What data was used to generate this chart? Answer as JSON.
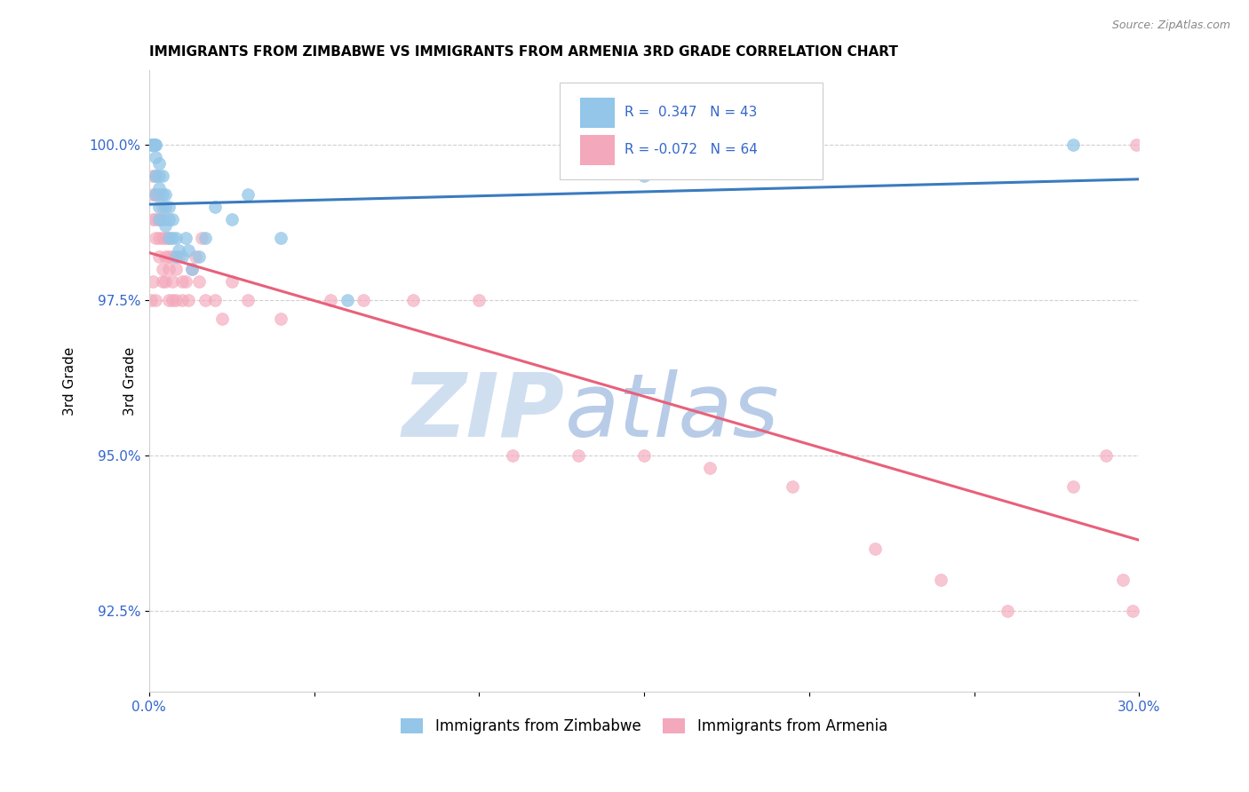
{
  "title": "IMMIGRANTS FROM ZIMBABWE VS IMMIGRANTS FROM ARMENIA 3RD GRADE CORRELATION CHART",
  "source": "Source: ZipAtlas.com",
  "ylabel": "3rd Grade",
  "y_ticks": [
    92.5,
    95.0,
    97.5,
    100.0
  ],
  "y_tick_labels": [
    "92.5%",
    "95.0%",
    "97.5%",
    "100.0%"
  ],
  "xlim": [
    0.0,
    0.3
  ],
  "ylim": [
    91.2,
    101.2
  ],
  "R_zimbabwe": 0.347,
  "R_armenia": -0.072,
  "N_zimbabwe": 43,
  "N_armenia": 64,
  "color_zimbabwe": "#93c6e8",
  "color_armenia": "#f4a8bb",
  "color_line_zimbabwe": "#3a7bbf",
  "color_line_armenia": "#e8607a",
  "watermark_zip": "ZIP",
  "watermark_atlas": "atlas",
  "watermark_color_zip": "#d0dff0",
  "watermark_color_atlas": "#b8cce8",
  "zimbabwe_x": [
    0.0005,
    0.001,
    0.001,
    0.001,
    0.0015,
    0.0015,
    0.002,
    0.002,
    0.002,
    0.002,
    0.002,
    0.003,
    0.003,
    0.003,
    0.003,
    0.003,
    0.004,
    0.004,
    0.004,
    0.005,
    0.005,
    0.005,
    0.006,
    0.006,
    0.006,
    0.007,
    0.007,
    0.008,
    0.008,
    0.009,
    0.01,
    0.011,
    0.012,
    0.013,
    0.015,
    0.017,
    0.02,
    0.025,
    0.03,
    0.04,
    0.06,
    0.15,
    0.28
  ],
  "zimbabwe_y": [
    100.0,
    100.0,
    100.0,
    100.0,
    100.0,
    100.0,
    100.0,
    100.0,
    99.8,
    99.5,
    99.2,
    99.7,
    99.5,
    99.3,
    99.0,
    98.8,
    99.5,
    99.2,
    98.8,
    99.2,
    99.0,
    98.7,
    99.0,
    98.8,
    98.5,
    98.8,
    98.5,
    98.5,
    98.2,
    98.3,
    98.2,
    98.5,
    98.3,
    98.0,
    98.2,
    98.5,
    99.0,
    98.8,
    99.2,
    98.5,
    97.5,
    99.5,
    100.0
  ],
  "armenia_x": [
    0.0005,
    0.001,
    0.001,
    0.001,
    0.001,
    0.001,
    0.002,
    0.002,
    0.002,
    0.002,
    0.002,
    0.003,
    0.003,
    0.003,
    0.003,
    0.004,
    0.004,
    0.004,
    0.004,
    0.005,
    0.005,
    0.005,
    0.005,
    0.006,
    0.006,
    0.006,
    0.006,
    0.007,
    0.007,
    0.007,
    0.008,
    0.008,
    0.009,
    0.01,
    0.01,
    0.011,
    0.012,
    0.013,
    0.014,
    0.015,
    0.016,
    0.017,
    0.02,
    0.022,
    0.025,
    0.03,
    0.04,
    0.055,
    0.065,
    0.08,
    0.1,
    0.11,
    0.13,
    0.15,
    0.17,
    0.195,
    0.22,
    0.24,
    0.26,
    0.28,
    0.29,
    0.295,
    0.298,
    0.299
  ],
  "armenia_y": [
    97.5,
    100.0,
    99.5,
    99.2,
    98.8,
    97.8,
    99.5,
    99.2,
    98.8,
    98.5,
    97.5,
    99.2,
    98.8,
    98.5,
    98.2,
    99.0,
    98.5,
    98.0,
    97.8,
    98.8,
    98.5,
    98.2,
    97.8,
    98.5,
    98.2,
    98.0,
    97.5,
    98.2,
    97.8,
    97.5,
    98.0,
    97.5,
    98.2,
    97.8,
    97.5,
    97.8,
    97.5,
    98.0,
    98.2,
    97.8,
    98.5,
    97.5,
    97.5,
    97.2,
    97.8,
    97.5,
    97.2,
    97.5,
    97.5,
    97.5,
    97.5,
    95.0,
    95.0,
    95.0,
    94.8,
    94.5,
    93.5,
    93.0,
    92.5,
    94.5,
    95.0,
    93.0,
    92.5,
    100.0
  ]
}
